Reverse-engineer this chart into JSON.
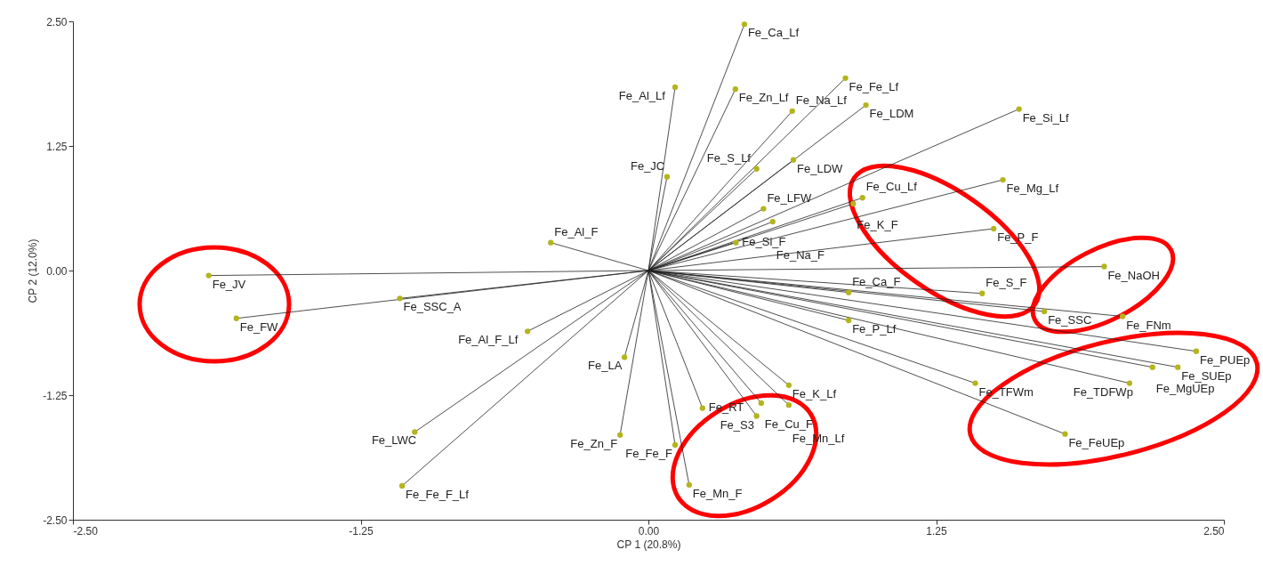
{
  "chart_data": {
    "type": "scatter",
    "xlabel": "CP 1 (20.8%)",
    "ylabel": "CP 2 (12.0%)",
    "x": [
      0.417,
      0.116,
      0.378,
      0.856,
      0.625,
      0.945,
      1.61,
      0.081,
      0.47,
      0.63,
      0.5,
      0.54,
      0.89,
      0.93,
      1.54,
      1.5,
      0.38,
      1.98,
      1.45,
      0.87,
      1.72,
      2.06,
      2.38,
      2.3,
      2.19,
      2.09,
      1.42,
      1.81,
      0.87,
      0.61,
      0.49,
      0.61,
      0.47,
      0.235,
      0.116,
      0.177,
      -0.123,
      -0.104,
      -1.015,
      -1.07,
      -0.525,
      -0.424,
      -1.91,
      -1.79,
      -1.08
    ],
    "series": [
      {
        "color": "#b4b41e",
        "values": [
          2.47,
          1.84,
          1.82,
          1.93,
          1.6,
          1.66,
          1.62,
          0.94,
          1.02,
          1.11,
          0.62,
          0.49,
          0.67,
          0.73,
          0.91,
          0.42,
          0.28,
          0.04,
          -0.23,
          -0.22,
          -0.41,
          -0.46,
          -0.81,
          -0.97,
          -0.97,
          -1.13,
          -1.13,
          -1.64,
          -0.5,
          -1.15,
          -1.33,
          -1.35,
          -1.46,
          -1.38,
          -1.75,
          -2.15,
          -1.65,
          -0.87,
          -1.62,
          -2.16,
          -0.61,
          0.28,
          -0.05,
          -0.48,
          -0.28
        ],
        "value_labels": [
          "Fe_Ca_Lf",
          "Fe_Al_Lf",
          "Fe_Zn_Lf",
          "Fe_Fe_Lf",
          "Fe_Na_Lf",
          "Fe_LDM",
          "Fe_Si_Lf",
          "Fe_JC",
          "Fe_S_Lf",
          "Fe_LDW",
          "Fe_LFW",
          "Fe_Na_F",
          "Fe_K_F",
          "Fe_Cu_Lf",
          "Fe_Mg_Lf",
          "Fe_P_F",
          "Fe_Si_F",
          "Fe_NaOH",
          "Fe_S_F",
          "Fe_Ca_F",
          "Fe_SSC",
          "Fe_FNm",
          "Fe_PUEp",
          "Fe_SUEp",
          "Fe_MgUEp",
          "Fe_TDFWp",
          "Fe_TFWm",
          "Fe_FeUEp",
          "Fe_P_Lf",
          "Fe_K_Lf",
          "Fe_Cu_F",
          "Fe_Mn_Lf",
          "Fe_S3",
          "Fe_RT",
          "Fe_Fe_F",
          "Fe_Mn_F",
          "Fe_Zn_F",
          "Fe_LA",
          "Fe_LWC",
          "Fe_Fe_F_Lf",
          "Fe_Al_F_Lf",
          "Fe_Al_F",
          "Fe_JV",
          "Fe_FW",
          "Fe_SSC_A"
        ]
      }
    ],
    "xlim": [
      -2.5,
      2.5
    ],
    "xticks": [
      {
        "value": -2.5,
        "label": "-2.50"
      },
      {
        "value": -1.25,
        "label": "-1.25"
      },
      {
        "value": 0,
        "label": "0.00"
      },
      {
        "value": 1.25,
        "label": "1.25"
      },
      {
        "value": 2.5,
        "label": "2.50"
      }
    ],
    "ylim": [
      -2.5,
      2.5
    ],
    "yticks": [
      {
        "value": -2.5,
        "label": "-2.50"
      },
      {
        "value": -1.25,
        "label": "-1.25"
      },
      {
        "value": 0,
        "label": "0.00"
      },
      {
        "value": 1.25,
        "label": "1.25"
      },
      {
        "value": 2.5,
        "label": "2.50"
      }
    ],
    "grid": false,
    "marker": "circle"
  }
}
